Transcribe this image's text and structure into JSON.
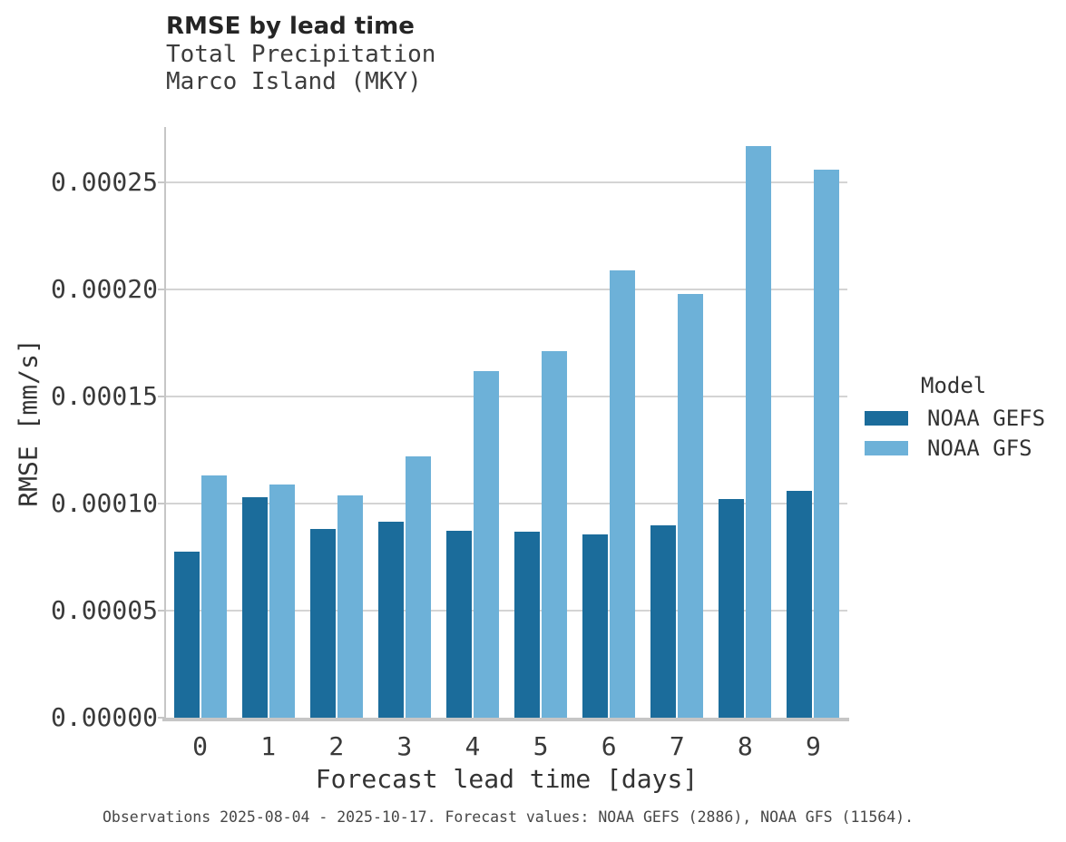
{
  "chart_data": {
    "type": "bar",
    "title": "RMSE by lead time",
    "subtitle": [
      "Total Precipitation",
      "Marco Island (MKY)"
    ],
    "categories": [
      "0",
      "1",
      "2",
      "3",
      "4",
      "5",
      "6",
      "7",
      "8",
      "9"
    ],
    "series": [
      {
        "name": "NOAA GEFS",
        "color": "#1b6c9b",
        "values": [
          7.75e-05,
          0.000103,
          8.8e-05,
          9.15e-05,
          8.75e-05,
          8.7e-05,
          8.55e-05,
          9e-05,
          0.000102,
          0.000106
        ]
      },
      {
        "name": "NOAA GFS",
        "color": "#6db1d8",
        "values": [
          0.000113,
          0.000109,
          0.000104,
          0.000122,
          0.000162,
          0.000171,
          0.000209,
          0.000198,
          0.000267,
          0.000256
        ]
      }
    ],
    "xlabel": "Forecast lead time [days]",
    "ylabel": "RMSE [mm/s]",
    "ylim": [
      0,
      0.000276
    ],
    "yticks": [
      {
        "label": "0.00000",
        "value": 0
      },
      {
        "label": "0.00005",
        "value": 5e-05
      },
      {
        "label": "0.00010",
        "value": 0.0001
      },
      {
        "label": "0.00015",
        "value": 0.00015
      },
      {
        "label": "0.00020",
        "value": 0.0002
      },
      {
        "label": "0.00025",
        "value": 0.00025
      }
    ],
    "grid": "horizontal gridlines on",
    "legend_title": "Model",
    "legend_position": "right"
  },
  "footer": {
    "caption": "Observations 2025-08-04 - 2025-10-17. Forecast values: NOAA GEFS (2886), NOAA GFS (11564)."
  }
}
